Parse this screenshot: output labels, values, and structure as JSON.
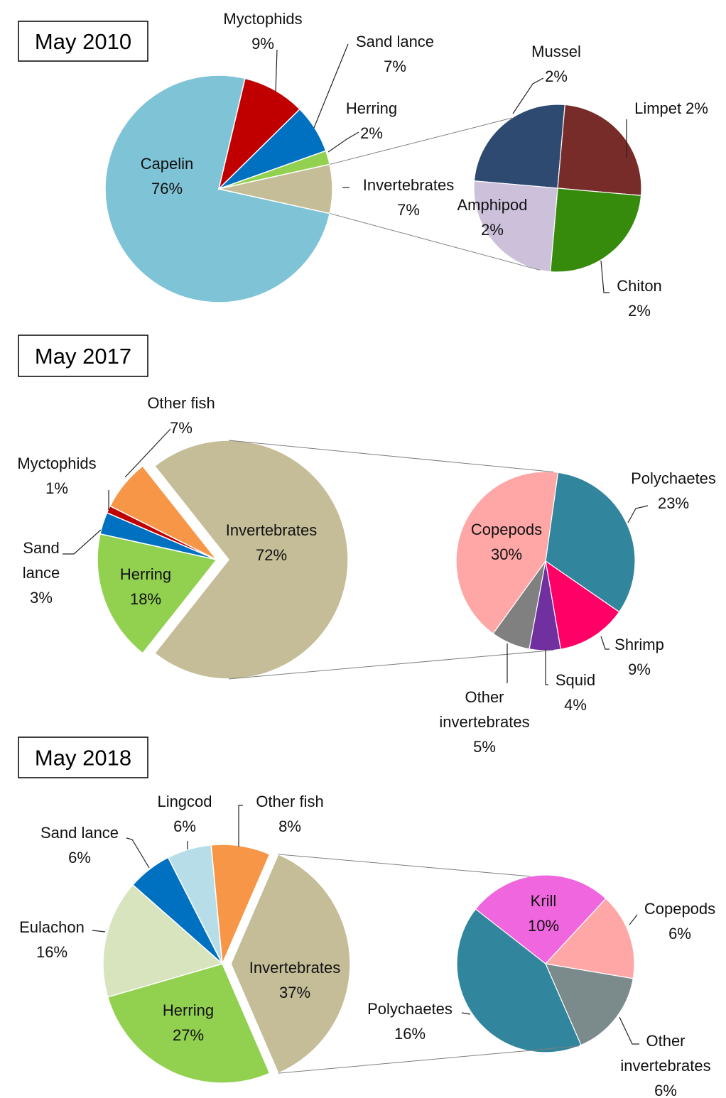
{
  "chart_data": [
    {
      "type": "pie",
      "title": "May 2010",
      "categories": [
        "Capelin",
        "Myctophids",
        "Sand lance",
        "Herring",
        "Invertebrates"
      ],
      "values": [
        76,
        9,
        7,
        2,
        7
      ],
      "value_labels": [
        "76%",
        "9%",
        "7%",
        "2%",
        "7%"
      ],
      "colors": [
        "#7fc3d6",
        "#c00000",
        "#0070c0",
        "#92d050",
        "#c4bd97"
      ],
      "breakdown": {
        "categories": [
          "Mussel",
          "Limpet",
          "Chiton",
          "Amphipod"
        ],
        "values": [
          2,
          2,
          2,
          2
        ],
        "value_labels": [
          "2%",
          "2%",
          "2%",
          "2%"
        ],
        "colors": [
          "#2e4a70",
          "#772c2a",
          "#368a0c",
          "#ccc0da"
        ]
      }
    },
    {
      "type": "pie",
      "title": "May 2017",
      "categories": [
        "Herring",
        "Sand lance",
        "Myctophids",
        "Other fish",
        "Invertebrates"
      ],
      "values": [
        18,
        3,
        1,
        7,
        72
      ],
      "value_labels": [
        "18%",
        "3%",
        "1%",
        "7%",
        "72%"
      ],
      "colors": [
        "#92d050",
        "#0070c0",
        "#c00000",
        "#f79646",
        "#c4bd97"
      ],
      "breakdown": {
        "categories": [
          "Polychaetes",
          "Shrimp",
          "Squid",
          "Other invertebrates",
          "Copepods"
        ],
        "values": [
          23,
          9,
          4,
          5,
          30
        ],
        "value_labels": [
          "23%",
          "9%",
          "4%",
          "5%",
          "30%"
        ],
        "colors": [
          "#31859c",
          "#ff0066",
          "#7030a0",
          "#808080",
          "#ffa7a7"
        ]
      }
    },
    {
      "type": "pie",
      "title": "May 2018",
      "categories": [
        "Herring",
        "Eulachon",
        "Sand lance",
        "Lingcod",
        "Other fish",
        "Invertebrates"
      ],
      "values": [
        27,
        16,
        6,
        6,
        8,
        37
      ],
      "value_labels": [
        "27%",
        "16%",
        "6%",
        "6%",
        "8%",
        "37%"
      ],
      "colors": [
        "#92d050",
        "#d7e4bd",
        "#0070c0",
        "#b7dee8",
        "#f79646",
        "#c4bd97"
      ],
      "breakdown": {
        "categories": [
          "Krill",
          "Copepods",
          "Other invertebrates",
          "Polychaetes"
        ],
        "values": [
          10,
          6,
          6,
          16
        ],
        "value_labels": [
          "10%",
          "6%",
          "6%",
          "16%"
        ],
        "colors": [
          "#f066de",
          "#ffa7a7",
          "#7b8a8b",
          "#31859c"
        ]
      }
    }
  ]
}
